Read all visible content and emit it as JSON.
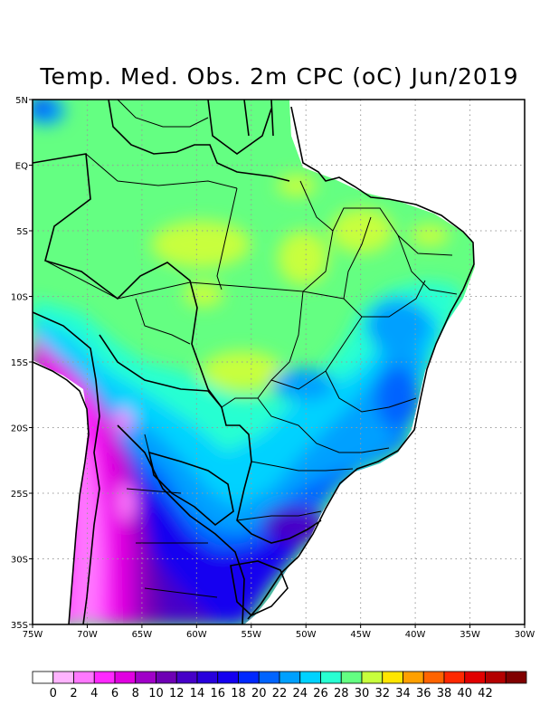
{
  "title": "Temp. Med. Obs. 2m CPC (oC) Jun/2019",
  "map": {
    "lon_range": [
      -75,
      -30
    ],
    "lat_range": [
      -35,
      5
    ],
    "lon_ticks": [
      {
        "v": -75,
        "label": "75W"
      },
      {
        "v": -70,
        "label": "70W"
      },
      {
        "v": -65,
        "label": "65W"
      },
      {
        "v": -60,
        "label": "60W"
      },
      {
        "v": -55,
        "label": "55W"
      },
      {
        "v": -50,
        "label": "50W"
      },
      {
        "v": -45,
        "label": "45W"
      },
      {
        "v": -40,
        "label": "40W"
      },
      {
        "v": -35,
        "label": "35W"
      },
      {
        "v": -30,
        "label": "30W"
      }
    ],
    "lat_ticks": [
      {
        "v": 5,
        "label": "5N"
      },
      {
        "v": 0,
        "label": "EQ"
      },
      {
        "v": -5,
        "label": "5S"
      },
      {
        "v": -10,
        "label": "10S"
      },
      {
        "v": -15,
        "label": "15S"
      },
      {
        "v": -20,
        "label": "20S"
      },
      {
        "v": -25,
        "label": "25S"
      },
      {
        "v": -30,
        "label": "30S"
      },
      {
        "v": -35,
        "label": "35S"
      }
    ],
    "grid": "dotted"
  },
  "colorbar": {
    "labels": [
      "0",
      "2",
      "4",
      "6",
      "8",
      "10",
      "12",
      "14",
      "16",
      "18",
      "20",
      "22",
      "24",
      "26",
      "28",
      "30",
      "32",
      "34",
      "36",
      "38",
      "40",
      "42"
    ],
    "colors": [
      "#ffffff",
      "#ffb4ff",
      "#ff78ff",
      "#ff28ff",
      "#e000e0",
      "#a000c8",
      "#6e00b4",
      "#4600c8",
      "#2800dc",
      "#1400f0",
      "#0028ff",
      "#0064ff",
      "#00a0ff",
      "#00d2ff",
      "#28ffd2",
      "#64ff82",
      "#c8ff3c",
      "#ffe600",
      "#ffa000",
      "#ff6400",
      "#ff2800",
      "#e10000",
      "#b40000",
      "#800000"
    ]
  }
}
